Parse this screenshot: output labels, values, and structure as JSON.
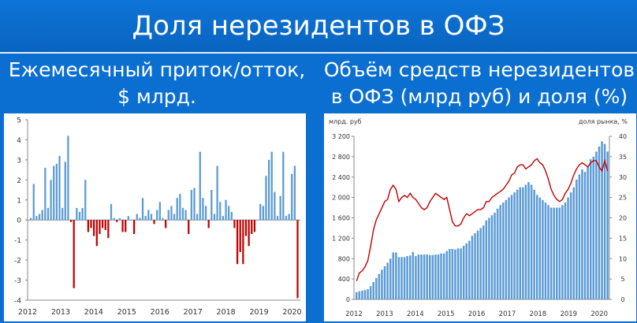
{
  "header": {
    "title": "Доля нерезидентов в ОФЗ"
  },
  "left": {
    "subtitle_line1": "Ежемесячный приток/отток,",
    "subtitle_line2": "$ млрд."
  },
  "right": {
    "subtitle_line1": "Объём средств нерезидентов",
    "subtitle_line2": "в ОФЗ (млрд руб) и доля (%)"
  },
  "colors": {
    "positive_bar": "#5b9bd5",
    "negative_bar": "#c00000",
    "share_line": "#c00000",
    "volume_bar": "#5b9bd5"
  },
  "chart_data": [
    {
      "type": "bar",
      "xlabel": "",
      "ylabel": "",
      "ylim": [
        -4,
        5
      ],
      "y_ticks": [
        5,
        4,
        3,
        2,
        1,
        0,
        -1,
        -2,
        -3,
        -4
      ],
      "x_tick_labels": [
        "2012",
        "2013",
        "2014",
        "2015",
        "2016",
        "2017",
        "2018",
        "2019",
        "2020"
      ],
      "x_range": [
        2012,
        2020.25
      ],
      "grid": false,
      "series": [
        {
          "values": [
            0.1,
            1.8,
            0.2,
            0.3,
            0.5,
            2.6,
            0.6,
            2.0,
            2.7,
            2.8,
            3.2,
            0.6,
            2.9,
            4.2,
            -0.1,
            -3.4,
            0.6,
            0.4,
            0.6,
            2.0,
            -0.6,
            -0.4,
            -0.8,
            -1.3,
            -0.7,
            -0.4,
            -0.5,
            -0.9,
            0.8,
            0.1,
            -0.1,
            0.1,
            -0.6,
            -0.6,
            0.2,
            0.0,
            -0.7,
            0.3,
            0.1,
            1.1,
            0.2,
            0.5,
            0.3,
            -0.2,
            0.5,
            0.9,
            0.1,
            -0.4,
            0.5,
            0.7,
            0.3,
            1.1,
            1.3,
            0.6,
            0.5,
            -0.7,
            1.5,
            1.6,
            0.3,
            3.4,
            1.1,
            0.7,
            -0.4,
            1.5,
            0.3,
            2.7,
            0.9,
            0.2,
            1.0,
            0.7,
            0.4,
            -0.4,
            -2.2,
            -1.6,
            -2.2,
            -0.8,
            -1.3,
            -0.7,
            -0.6,
            0.0,
            0.8,
            0.7,
            2.2,
            3.0,
            3.4,
            1.4,
            0.2,
            1.2,
            3.4,
            0.2,
            0.3,
            2.3,
            2.7,
            -3.9
          ]
        }
      ]
    },
    {
      "type": "bar",
      "ylabel": "млрд. руб",
      "y2label": "доля рынка, %",
      "ylim": [
        0,
        3200
      ],
      "y2lim": [
        0,
        40
      ],
      "y_ticks": [
        0,
        400,
        800,
        1200,
        1600,
        2000,
        2400,
        2800,
        3200
      ],
      "y_tick_labels": [
        "0",
        "400",
        "800",
        "1 200",
        "1 600",
        "2 000",
        "2 400",
        "2 800",
        "3 200"
      ],
      "y2_ticks": [
        0,
        5,
        10,
        15,
        20,
        25,
        30,
        35,
        40
      ],
      "x_tick_labels": [
        "2012",
        "2013",
        "2014",
        "2015",
        "2016",
        "2017",
        "2018",
        "2019",
        "2020"
      ],
      "x_range": [
        2012,
        2020.33
      ],
      "grid": false,
      "series": [
        {
          "type": "bar",
          "values": [
            140,
            160,
            170,
            180,
            200,
            260,
            340,
            420,
            500,
            580,
            650,
            720,
            800,
            920,
            920,
            830,
            830,
            830,
            850,
            860,
            930,
            850,
            880,
            880,
            880,
            880,
            870,
            870,
            880,
            880,
            900,
            900,
            950,
            990,
            990,
            980,
            1000,
            1000,
            1050,
            1100,
            1150,
            1250,
            1300,
            1350,
            1400,
            1450,
            1550,
            1600,
            1650,
            1700,
            1780,
            1850,
            1900,
            1950,
            2000,
            2050,
            2100,
            2150,
            2200,
            2200,
            2250,
            2300,
            2250,
            2150,
            2050,
            2000,
            1950,
            1900,
            1850,
            1800,
            1800,
            1800,
            1800,
            1850,
            1900,
            2000,
            2100,
            2200,
            2350,
            2450,
            2550,
            2500,
            2600,
            2750,
            2800,
            2900,
            3000,
            3100,
            3050,
            2900
          ]
        },
        {
          "type": "line",
          "axis": "y2",
          "values": [
            4.5,
            6.5,
            7,
            8,
            9.5,
            13,
            17,
            19.5,
            21,
            22.5,
            24,
            24.5,
            27,
            28,
            27,
            24,
            25,
            25.5,
            25,
            26,
            25,
            24.5,
            23.5,
            22.5,
            22,
            22.5,
            24,
            25,
            26,
            25.5,
            25,
            24.5,
            25,
            22,
            19,
            18,
            18,
            18.5,
            20,
            21,
            20.5,
            21,
            21.5,
            22,
            22,
            22.5,
            24,
            24,
            25,
            25.5,
            26,
            26.5,
            27,
            28,
            29,
            30.5,
            31,
            32.5,
            33,
            33,
            32,
            32.5,
            33,
            34,
            34.5,
            33.5,
            33,
            31.5,
            29.5,
            27,
            25.5,
            24.5,
            24,
            24.5,
            26,
            27,
            28.5,
            30.5,
            32,
            33,
            33.5,
            33,
            32.5,
            33.5,
            34,
            34,
            32.5,
            31.5,
            34,
            31.5
          ]
        }
      ]
    }
  ]
}
